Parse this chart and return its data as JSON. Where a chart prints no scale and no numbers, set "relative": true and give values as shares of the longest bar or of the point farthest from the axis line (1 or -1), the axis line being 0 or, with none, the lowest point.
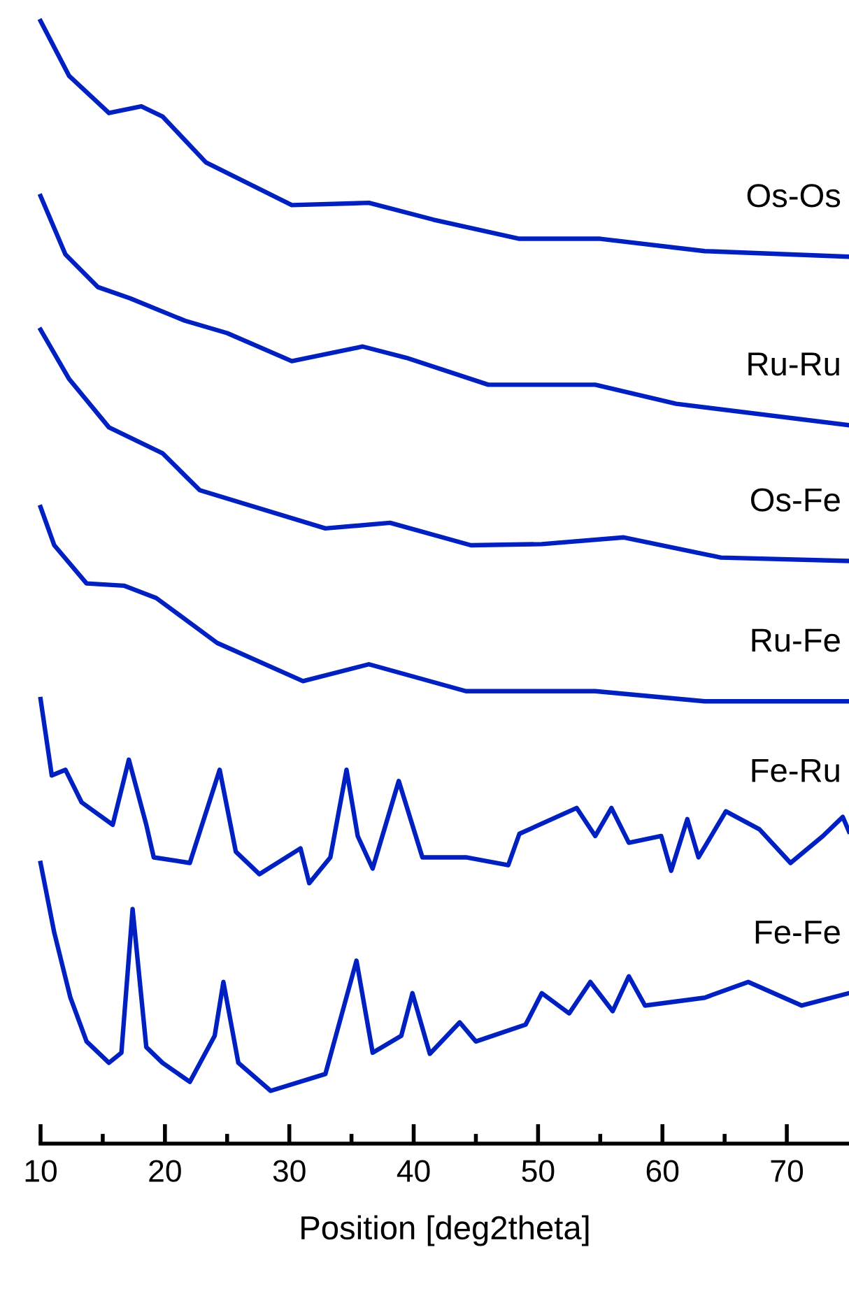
{
  "chart_data": {
    "type": "line",
    "relative": true,
    "xlabel": "Position [deg2theta]",
    "xlim": [
      10,
      75
    ],
    "xticks": [
      10,
      {
        "value": 15,
        "label": null
      },
      20,
      {
        "value": 25,
        "label": null
      },
      30,
      {
        "value": 35,
        "label": null
      },
      40,
      {
        "value": 45,
        "label": null
      },
      50,
      {
        "value": 55,
        "label": null
      },
      60,
      {
        "value": 65,
        "label": null
      },
      70
    ],
    "grid": false,
    "legend": false,
    "marker": "none",
    "line_style": "solid",
    "tick_labels": "x",
    "series": [
      {
        "name": "Os-Os",
        "color": "#0020c0",
        "x": [
          10,
          12.3,
          15.5,
          18.1,
          19.8,
          23.3,
          30.2,
          36.4,
          41.6,
          48.5,
          55,
          63.4,
          75
        ],
        "values": [
          1.0,
          0.951,
          0.918,
          0.924,
          0.915,
          0.874,
          0.836,
          0.838,
          0.823,
          0.806,
          0.806,
          0.795,
          0.79
        ]
      },
      {
        "name": "Ru-Ru",
        "color": "#0020c0",
        "x": [
          10,
          12,
          14.6,
          17.2,
          21.6,
          25,
          30.2,
          35.9,
          39.4,
          46,
          54.6,
          61.1,
          75
        ],
        "values": [
          0.844,
          0.792,
          0.763,
          0.753,
          0.733,
          0.722,
          0.697,
          0.71,
          0.7,
          0.676,
          0.676,
          0.659,
          0.64
        ]
      },
      {
        "name": "Os-Fe",
        "color": "#0020c0",
        "x": [
          10,
          12.3,
          15.5,
          19.8,
          22.8,
          32.9,
          38.1,
          44.6,
          50.3,
          56.9,
          64.7,
          75
        ],
        "values": [
          0.725,
          0.681,
          0.638,
          0.615,
          0.582,
          0.548,
          0.553,
          0.533,
          0.534,
          0.54,
          0.522,
          0.519
        ]
      },
      {
        "name": "Ru-Fe",
        "color": "#0020c0",
        "x": [
          10,
          11.1,
          13.7,
          16.7,
          19.3,
          24.2,
          31.1,
          36.4,
          44.2,
          54.6,
          63.4,
          75
        ],
        "values": [
          0.567,
          0.533,
          0.499,
          0.497,
          0.486,
          0.446,
          0.412,
          0.427,
          0.403,
          0.403,
          0.394,
          0.394
        ]
      },
      {
        "name": "Fe-Ru",
        "color": "#0020c0",
        "x": [
          10,
          10.9,
          12,
          13.3,
          15.8,
          17.1,
          18.5,
          19.1,
          22,
          24.4,
          25.7,
          27.6,
          30.9,
          31.6,
          33.3,
          34.6,
          35.5,
          36.7,
          38.8,
          40.7,
          44.2,
          47.6,
          48.5,
          53.1,
          54.6,
          55.9,
          57.3,
          59.9,
          60.7,
          62,
          62.9,
          65.1,
          67.8,
          70.3,
          72.9,
          74.5,
          75
        ],
        "values": [
          0.396,
          0.328,
          0.333,
          0.304,
          0.284,
          0.342,
          0.284,
          0.255,
          0.25,
          0.333,
          0.26,
          0.24,
          0.263,
          0.232,
          0.255,
          0.333,
          0.274,
          0.245,
          0.323,
          0.255,
          0.255,
          0.248,
          0.276,
          0.299,
          0.274,
          0.299,
          0.268,
          0.274,
          0.243,
          0.289,
          0.255,
          0.296,
          0.28,
          0.25,
          0.274,
          0.291,
          0.278
        ]
      },
      {
        "name": "Fe-Fe",
        "color": "#0020c0",
        "x": [
          10,
          11.1,
          12.4,
          13.7,
          15.5,
          16.5,
          17.4,
          18.5,
          19.8,
          22,
          24,
          24.7,
          25.9,
          28.5,
          32.9,
          35.4,
          36.7,
          39,
          39.9,
          41.3,
          43.7,
          45,
          49,
          50.3,
          52.5,
          54.2,
          56,
          57.3,
          58.6,
          63.4,
          66.9,
          71.2,
          75
        ],
        "values": [
          0.25,
          0.188,
          0.13,
          0.091,
          0.072,
          0.081,
          0.209,
          0.086,
          0.072,
          0.055,
          0.096,
          0.144,
          0.072,
          0.047,
          0.062,
          0.163,
          0.081,
          0.096,
          0.134,
          0.08,
          0.108,
          0.091,
          0.106,
          0.134,
          0.116,
          0.144,
          0.118,
          0.149,
          0.123,
          0.13,
          0.144,
          0.123,
          0.134
        ]
      }
    ]
  }
}
